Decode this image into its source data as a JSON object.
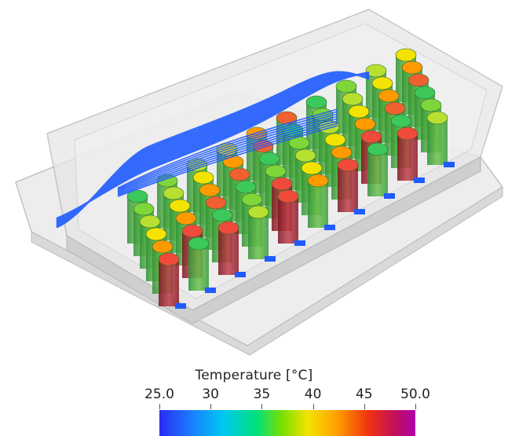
{
  "legend": {
    "title": "Temperature [°C]",
    "ticks": [
      "25.0",
      "30",
      "35",
      "40",
      "45",
      "50.0"
    ],
    "range": [
      25.0,
      50.0
    ],
    "colormap": [
      "#2b2bf2",
      "#1a7bff",
      "#00c8f0",
      "#00e07a",
      "#7ae000",
      "#f4e300",
      "#ff9a00",
      "#f03010",
      "#c0105a",
      "#b000a8"
    ]
  },
  "scene": {
    "description_icon": "battery-pack-thermal-render-icon",
    "colors": {
      "housing": "#d8d8d8",
      "cell_body": "#4caf50",
      "coolant": "#1f5bff",
      "hot_cell": "#b0203a"
    }
  }
}
